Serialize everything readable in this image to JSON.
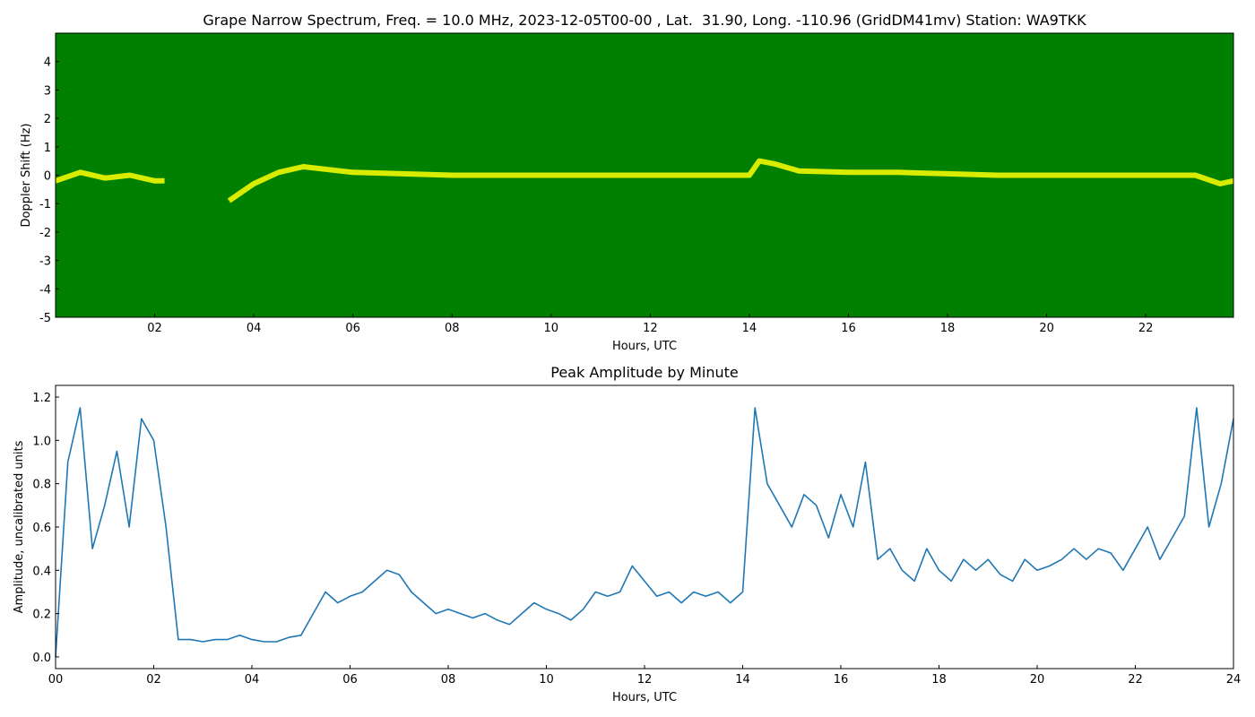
{
  "chart_data": [
    {
      "type": "spectrogram",
      "title": "Grape Narrow Spectrum, Freq. = 10.0 MHz, 2023-12-05T00-00 , Lat.  31.90, Long. -110.96 (GridDM41mv) Station: WA9TKK",
      "xlabel": "Hours, UTC",
      "ylabel": "Doppler Shift (Hz)",
      "background_color": "#008000",
      "xlim": [
        0,
        23.77
      ],
      "ylim": [
        -5,
        5
      ],
      "xticks": [
        {
          "value": 2,
          "label": "02"
        },
        {
          "value": 4,
          "label": "04"
        },
        {
          "value": 6,
          "label": "06"
        },
        {
          "value": 8,
          "label": "08"
        },
        {
          "value": 10,
          "label": "10"
        },
        {
          "value": 12,
          "label": "12"
        },
        {
          "value": 14,
          "label": "14"
        },
        {
          "value": 16,
          "label": "16"
        },
        {
          "value": 18,
          "label": "18"
        },
        {
          "value": 20,
          "label": "20"
        },
        {
          "value": 22,
          "label": "22"
        }
      ],
      "yticks": [
        -5,
        -4,
        -3,
        -2,
        -1,
        0,
        1,
        2,
        3,
        4
      ],
      "x": [
        0,
        0.5,
        1,
        1.5,
        2,
        2.2,
        3,
        3.5,
        4,
        4.5,
        5,
        5.5,
        6,
        7,
        8,
        9,
        10,
        11,
        12,
        13,
        14,
        14.2,
        14.5,
        15,
        16,
        17,
        18,
        19,
        20,
        21,
        22,
        23,
        23.5,
        23.77
      ],
      "series": [
        {
          "color": "#ffff00",
          "values": [
            -0.2,
            0.1,
            -0.1,
            0,
            -0.2,
            -0.2,
            null,
            -0.9,
            -0.3,
            0.1,
            0.3,
            0.2,
            0.1,
            0.05,
            0,
            0,
            0,
            0,
            0,
            0,
            0,
            0.5,
            0.4,
            0.15,
            0.1,
            0.1,
            0.05,
            0,
            0,
            0,
            0,
            0,
            -0.3,
            -0.2
          ]
        }
      ]
    },
    {
      "type": "line",
      "title": "Peak Amplitude by Minute",
      "xlabel": "Hours, UTC",
      "ylabel": "Amplitude, uncalibrated units",
      "xlim": [
        0,
        24
      ],
      "ylim": [
        -0.054,
        1.254
      ],
      "xticks": [
        {
          "value": 0,
          "label": "00"
        },
        {
          "value": 2,
          "label": "02"
        },
        {
          "value": 4,
          "label": "04"
        },
        {
          "value": 6,
          "label": "06"
        },
        {
          "value": 8,
          "label": "08"
        },
        {
          "value": 10,
          "label": "10"
        },
        {
          "value": 12,
          "label": "12"
        },
        {
          "value": 14,
          "label": "14"
        },
        {
          "value": 16,
          "label": "16"
        },
        {
          "value": 18,
          "label": "18"
        },
        {
          "value": 20,
          "label": "20"
        },
        {
          "value": 22,
          "label": "22"
        },
        {
          "value": 24,
          "label": "24"
        }
      ],
      "yticks": [
        {
          "value": 0,
          "label": "0.0"
        },
        {
          "value": 0.2,
          "label": "0.2"
        },
        {
          "value": 0.4,
          "label": "0.4"
        },
        {
          "value": 0.6,
          "label": "0.6"
        },
        {
          "value": 0.8,
          "label": "0.8"
        },
        {
          "value": 1,
          "label": "1.0"
        },
        {
          "value": 1.2,
          "label": "1.2"
        }
      ],
      "x": [
        0,
        0.25,
        0.5,
        0.75,
        1,
        1.25,
        1.5,
        1.75,
        2,
        2.25,
        2.5,
        2.75,
        3,
        3.25,
        3.5,
        3.75,
        4,
        4.25,
        4.5,
        4.75,
        5,
        5.25,
        5.5,
        5.75,
        6,
        6.25,
        6.5,
        6.75,
        7,
        7.25,
        7.5,
        7.75,
        8,
        8.25,
        8.5,
        8.75,
        9,
        9.25,
        9.5,
        9.75,
        10,
        10.25,
        10.5,
        10.75,
        11,
        11.25,
        11.5,
        11.75,
        12,
        12.25,
        12.5,
        12.75,
        13,
        13.25,
        13.5,
        13.75,
        14,
        14.25,
        14.5,
        14.75,
        15,
        15.25,
        15.5,
        15.75,
        16,
        16.25,
        16.5,
        16.75,
        17,
        17.25,
        17.5,
        17.75,
        18,
        18.25,
        18.5,
        18.75,
        19,
        19.25,
        19.5,
        19.75,
        20,
        20.25,
        20.5,
        20.75,
        21,
        21.25,
        21.5,
        21.75,
        22,
        22.25,
        22.5,
        22.75,
        23,
        23.25,
        23.5,
        23.75,
        24
      ],
      "series": [
        {
          "color": "#1f77b4",
          "values": [
            0.0,
            0.9,
            1.15,
            0.5,
            0.7,
            0.95,
            0.6,
            1.1,
            1.0,
            0.6,
            0.08,
            0.08,
            0.07,
            0.08,
            0.08,
            0.1,
            0.08,
            0.07,
            0.07,
            0.09,
            0.1,
            0.2,
            0.3,
            0.25,
            0.28,
            0.3,
            0.35,
            0.4,
            0.38,
            0.3,
            0.25,
            0.2,
            0.22,
            0.2,
            0.18,
            0.2,
            0.17,
            0.15,
            0.2,
            0.25,
            0.22,
            0.2,
            0.17,
            0.22,
            0.3,
            0.28,
            0.3,
            0.42,
            0.35,
            0.28,
            0.3,
            0.25,
            0.3,
            0.28,
            0.3,
            0.25,
            0.3,
            1.15,
            0.8,
            0.7,
            0.6,
            0.75,
            0.7,
            0.55,
            0.75,
            0.6,
            0.9,
            0.45,
            0.5,
            0.4,
            0.35,
            0.5,
            0.4,
            0.35,
            0.45,
            0.4,
            0.45,
            0.38,
            0.35,
            0.45,
            0.4,
            0.42,
            0.45,
            0.5,
            0.45,
            0.5,
            0.48,
            0.4,
            0.5,
            0.6,
            0.45,
            0.55,
            0.65,
            1.15,
            0.6,
            0.8,
            1.1
          ]
        }
      ]
    }
  ]
}
